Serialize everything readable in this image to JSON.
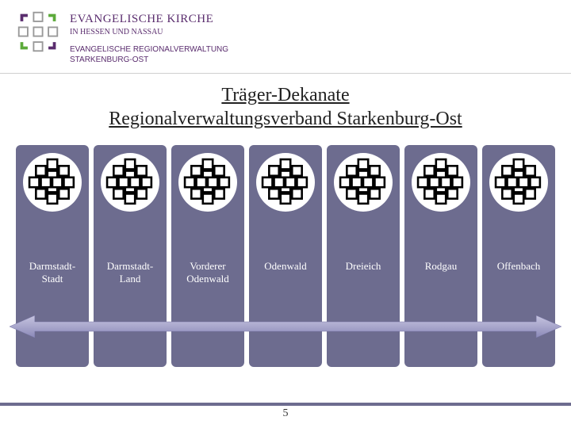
{
  "header": {
    "org_main": "EVANGELISCHE KIRCHE",
    "org_sub": "IN HESSEN UND NASSAU",
    "line2a": "EVANGELISCHE REGIONALVERWALTUNG",
    "line2b": "STARKENBURG-OST",
    "org_main_fontsize": 15,
    "org_sub_fontsize": 10,
    "line2_fontsize": 10
  },
  "title": {
    "line1": "Träger-Dekanate",
    "line2": "Regionalverwaltungsverband Starkenburg-Ost",
    "fontsize": 24,
    "color": "#222222"
  },
  "columns": {
    "bg_color": "#6d6c8f",
    "label_fontsize": 13,
    "items": [
      {
        "label": "Darmstadt-Stadt"
      },
      {
        "label": "Darmstadt-Land"
      },
      {
        "label": "Vorderer Odenwald"
      },
      {
        "label": "Odenwald"
      },
      {
        "label": "Dreieich"
      },
      {
        "label": "Rodgau"
      },
      {
        "label": "Offenbach"
      }
    ]
  },
  "arrow": {
    "fill": "#9b99c2",
    "stroke": "#7a78a8"
  },
  "footer": {
    "accent_color": "#6d6c8f",
    "page_number": "5",
    "page_fontsize": 14
  },
  "logo": {
    "square_stroke": "#999999",
    "arrow_green": "#5caa3a",
    "arrow_purple": "#5a2d6e"
  }
}
